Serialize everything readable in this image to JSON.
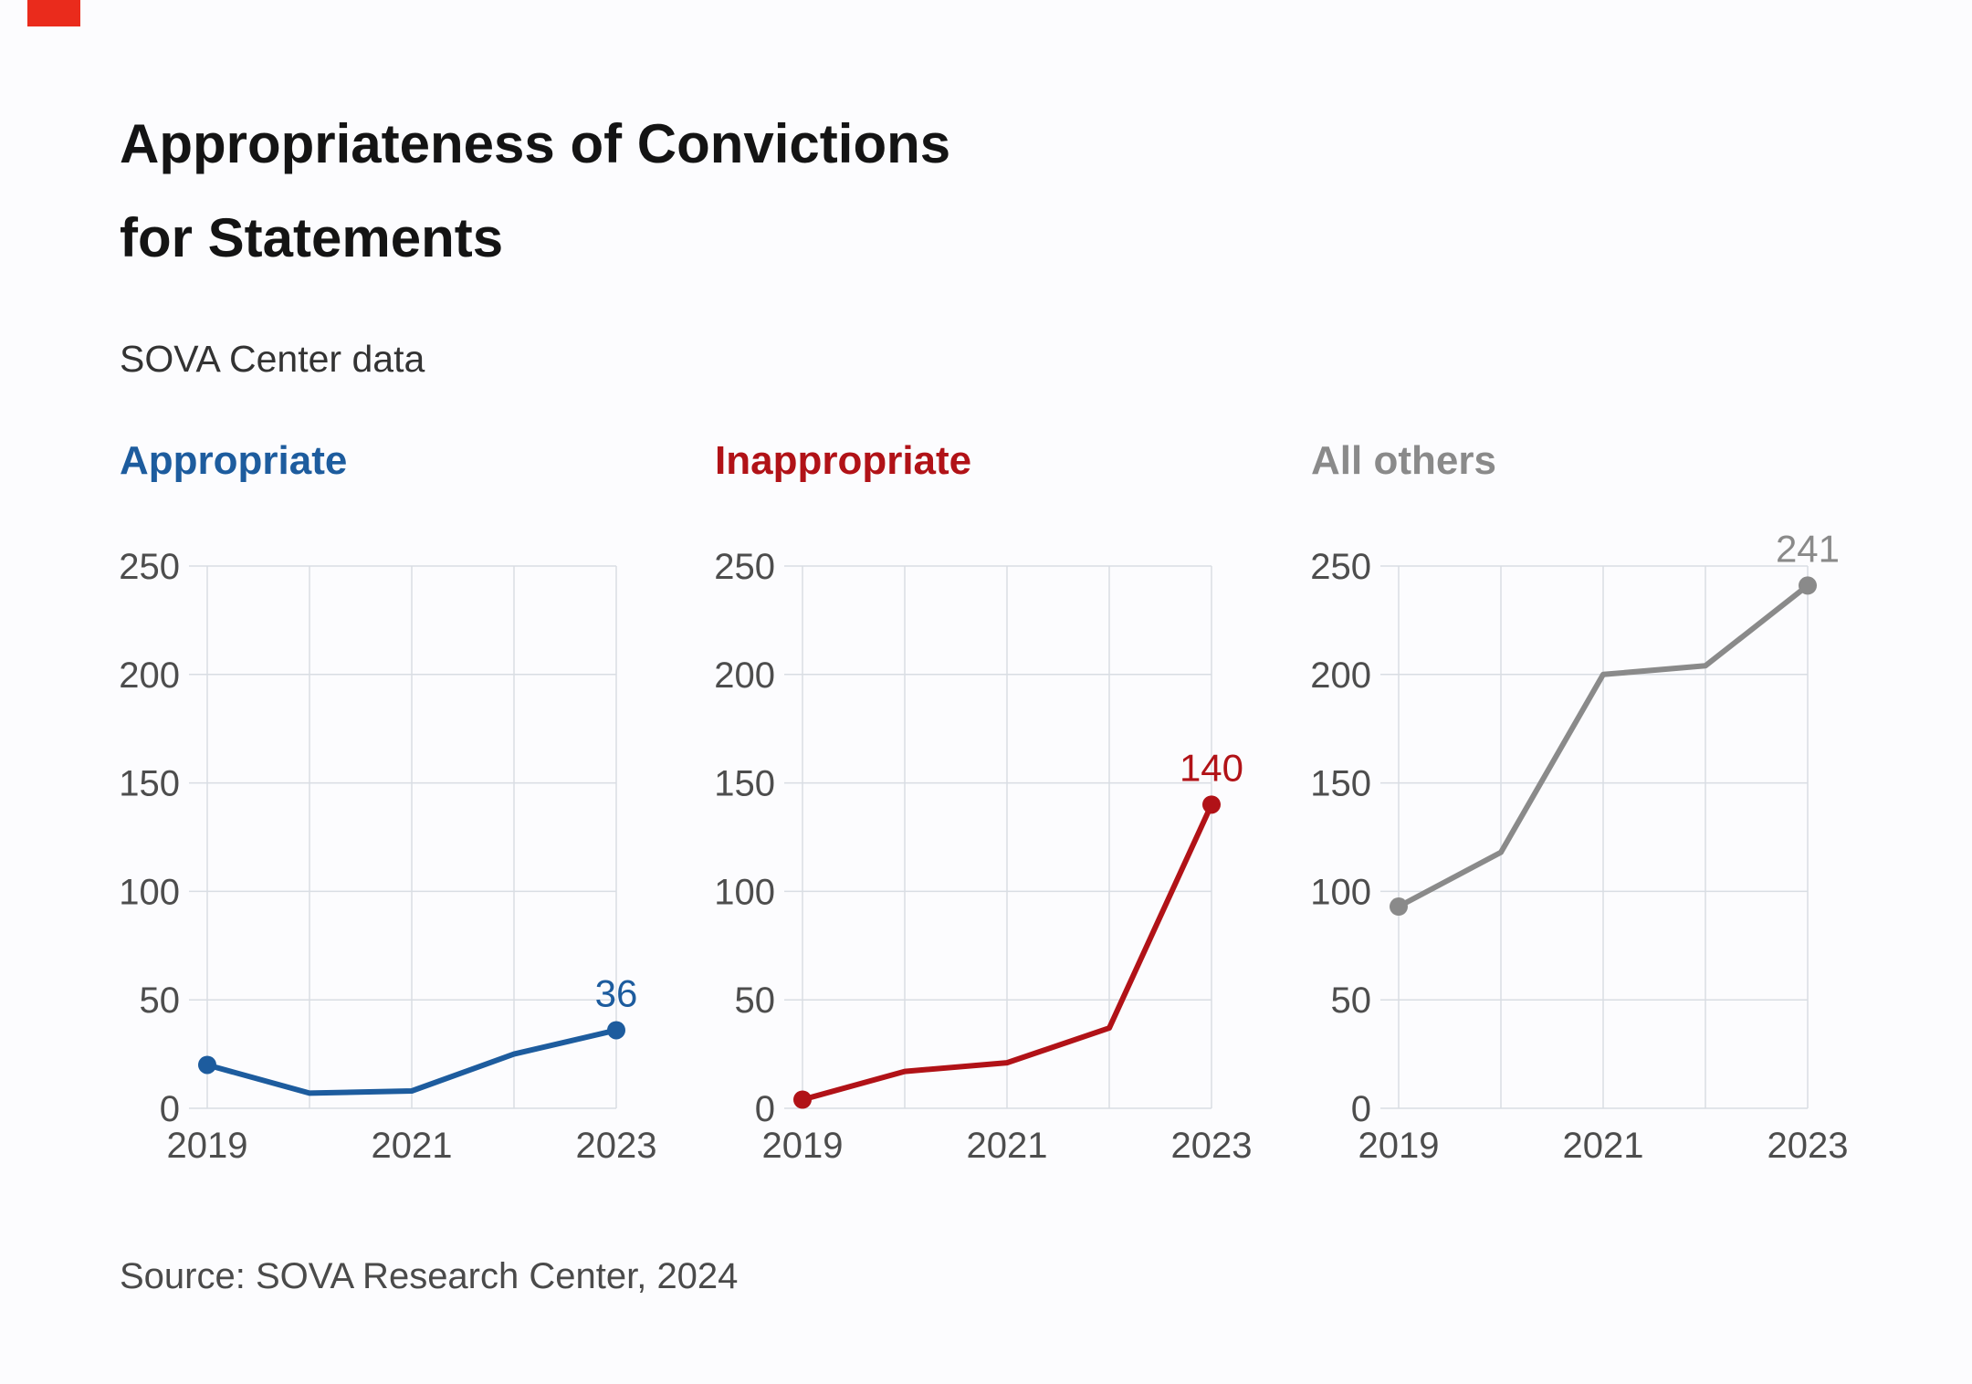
{
  "brand": {
    "corner_color": "#ea2b1c"
  },
  "header": {
    "title_line1": "Appropriateness of Convictions",
    "title_line2": "for Statements",
    "subtitle": "SOVA Center data"
  },
  "footer": {
    "source": "Source: SOVA Research Center, 2024"
  },
  "colors": {
    "grid": "#d9dde3",
    "tick_text": "#4d4d4d"
  },
  "chart_data": [
    {
      "type": "line",
      "title": "Appropriate",
      "color": "#1d5c9e",
      "x": [
        2019,
        2020,
        2021,
        2022,
        2023
      ],
      "values": [
        20,
        7,
        8,
        25,
        36
      ],
      "end_label": "36",
      "xlabel": "",
      "ylabel": "",
      "ylim": [
        0,
        250
      ],
      "yticks": [
        0,
        50,
        100,
        150,
        200,
        250
      ],
      "xticks": [
        2019,
        2021,
        2023
      ],
      "grid": true,
      "legend": "none",
      "markers": "first_last"
    },
    {
      "type": "line",
      "title": "Inappropriate",
      "color": "#b11217",
      "x": [
        2019,
        2020,
        2021,
        2022,
        2023
      ],
      "values": [
        4,
        17,
        21,
        37,
        140
      ],
      "end_label": "140",
      "xlabel": "",
      "ylabel": "",
      "ylim": [
        0,
        250
      ],
      "yticks": [
        0,
        50,
        100,
        150,
        200,
        250
      ],
      "xticks": [
        2019,
        2021,
        2023
      ],
      "grid": true,
      "legend": "none",
      "markers": "first_last"
    },
    {
      "type": "line",
      "title": "All others",
      "color": "#8a8a8a",
      "x": [
        2019,
        2020,
        2021,
        2022,
        2023
      ],
      "values": [
        93,
        118,
        200,
        204,
        241
      ],
      "end_label": "241",
      "xlabel": "",
      "ylabel": "",
      "ylim": [
        0,
        250
      ],
      "yticks": [
        0,
        50,
        100,
        150,
        200,
        250
      ],
      "xticks": [
        2019,
        2021,
        2023
      ],
      "grid": true,
      "legend": "none",
      "markers": "first_last"
    }
  ]
}
